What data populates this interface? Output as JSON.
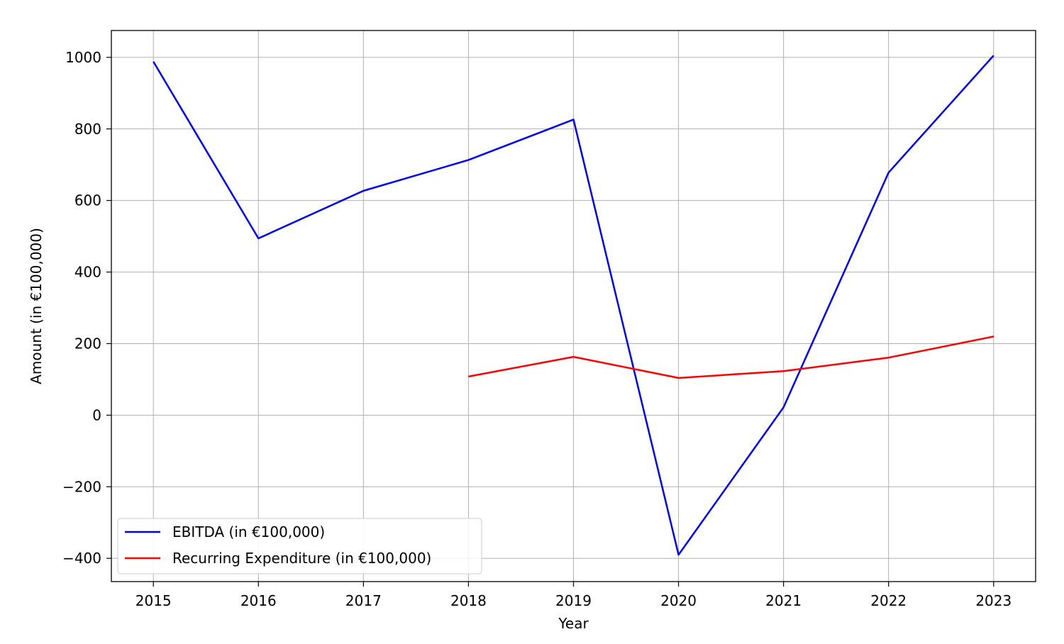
{
  "chart_data": {
    "type": "line",
    "title": "",
    "xlabel": "Year",
    "ylabel": "Amount (in €100,000)",
    "x": [
      2015,
      2016,
      2017,
      2018,
      2019,
      2020,
      2021,
      2022,
      2023
    ],
    "xlim": [
      2014.6,
      2023.4
    ],
    "ylim": [
      -465,
      1075
    ],
    "y_ticks": [
      -400,
      -200,
      0,
      200,
      400,
      600,
      800,
      1000
    ],
    "y_tick_labels": [
      "−400",
      "−200",
      "0",
      "200",
      "400",
      "600",
      "800",
      "1000"
    ],
    "x_tick_labels": [
      "2015",
      "2016",
      "2017",
      "2018",
      "2019",
      "2020",
      "2021",
      "2022",
      "2023"
    ],
    "grid": true,
    "legend_position": "lower-left",
    "series": [
      {
        "name": "EBITDA (in €100,000)",
        "color": "#0000ff",
        "x": [
          2015,
          2016,
          2017,
          2018,
          2019,
          2020,
          2021,
          2022,
          2023
        ],
        "values": [
          988,
          494,
          627,
          713,
          826,
          -390,
          22,
          678,
          1005
        ]
      },
      {
        "name": "Recurring Expenditure (in €100,000)",
        "color": "#ff0000",
        "x": [
          2018,
          2019,
          2020,
          2021,
          2022,
          2023
        ],
        "values": [
          108,
          163,
          104,
          123,
          161,
          220
        ]
      }
    ]
  }
}
